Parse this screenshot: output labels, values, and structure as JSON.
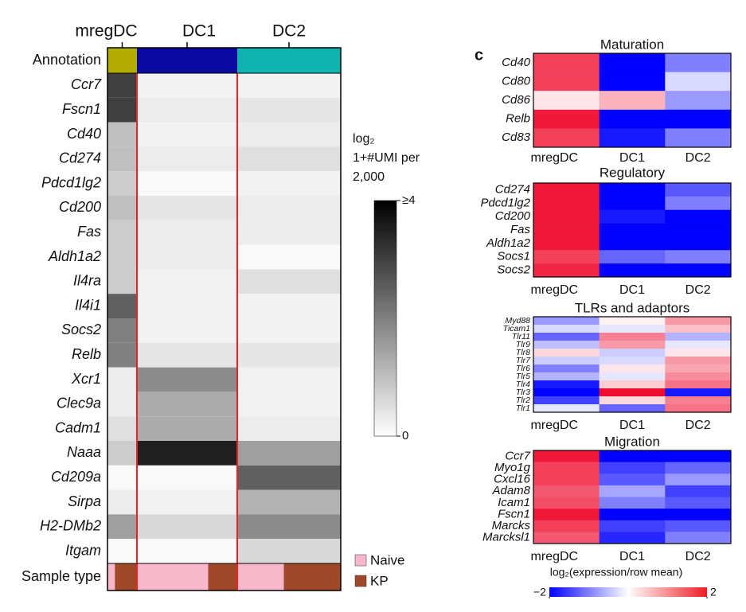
{
  "chart_data": [
    {
      "type": "heatmap",
      "columns": [
        "mregDC",
        "DC1",
        "DC2"
      ],
      "column_colors": [
        "#b3ad00",
        "#0a0aa0",
        "#0fb3b0"
      ],
      "row_header": "Annotation",
      "rows": [
        "Ccr7",
        "Fscn1",
        "Cd40",
        "Cd274",
        "Pdcd1lg2",
        "Cd200",
        "Fas",
        "Aldh1a2",
        "Il4ra",
        "Il4i1",
        "Socs2",
        "Relb",
        "Xcr1",
        "Clec9a",
        "Cadm1",
        "Naaa",
        "Cd209a",
        "Sirpa",
        "H2-DMb2",
        "Itgam"
      ],
      "values": [
        [
          3,
          0.2,
          0.2
        ],
        [
          3,
          0.3,
          0.4
        ],
        [
          1,
          0.2,
          0.3
        ],
        [
          1,
          0.3,
          0.5
        ],
        [
          0.8,
          0.1,
          0.2
        ],
        [
          1,
          0.4,
          0.3
        ],
        [
          0.8,
          0.3,
          0.3
        ],
        [
          0.8,
          0.3,
          0.1
        ],
        [
          0.8,
          0.2,
          0.5
        ],
        [
          2.5,
          0.2,
          0.2
        ],
        [
          2,
          0.2,
          0.2
        ],
        [
          2,
          0.4,
          0.4
        ],
        [
          0.3,
          1.8,
          0.2
        ],
        [
          0.3,
          1.3,
          0.2
        ],
        [
          0.5,
          1.3,
          0.3
        ],
        [
          0.8,
          3.5,
          1.5
        ],
        [
          0.1,
          0.1,
          2.5
        ],
        [
          0.3,
          0.2,
          1.2
        ],
        [
          1.5,
          0.6,
          1.8
        ],
        [
          0.1,
          0.1,
          0.6
        ]
      ],
      "colorbar_label": [
        "log₂",
        "1+#UMI per",
        "2,000"
      ],
      "clim": [
        0,
        4
      ],
      "cticks": [
        {
          "value": 4,
          "label": "≥4"
        },
        0
      ],
      "sample_label": "Sample type",
      "samples": [
        "Naive",
        "KP"
      ],
      "sample_colors": [
        "#f7b8cc",
        "#a0482a"
      ],
      "sample_fractions": [
        [
          0.25,
          0.75
        ],
        [
          0.71,
          0.29
        ],
        [
          0.45,
          0.55
        ]
      ]
    },
    {
      "type": "heatmap",
      "panel_letter": "c",
      "title": "Maturation",
      "columns": [
        "mregDC",
        "DC1",
        "DC2"
      ],
      "rows": [
        "Cd40",
        "Cd80",
        "Cd86",
        "Relb",
        "Cd83"
      ],
      "values": [
        [
          1.5,
          -2,
          -1
        ],
        [
          1.5,
          -2,
          -0.3
        ],
        [
          0.2,
          0.6,
          -0.8
        ],
        [
          1.8,
          -2,
          -2
        ],
        [
          1.5,
          -1.8,
          -1
        ]
      ]
    },
    {
      "type": "heatmap",
      "title": "Regulatory",
      "columns": [
        "mregDC",
        "DC1",
        "DC2"
      ],
      "rows": [
        "Cd274",
        "Pdcd1lg2",
        "Cd200",
        "Fas",
        "Aldh1a2",
        "Socs1",
        "Socs2"
      ],
      "values": [
        [
          1.8,
          -2,
          -1.3
        ],
        [
          1.8,
          -2,
          -1
        ],
        [
          1.8,
          -1.8,
          -2
        ],
        [
          1.8,
          -2,
          -2
        ],
        [
          1.8,
          -2,
          -2
        ],
        [
          1.5,
          -1.2,
          -1
        ],
        [
          1.7,
          -2,
          -2
        ]
      ]
    },
    {
      "type": "heatmap",
      "title": "TLRs and adaptors",
      "columns": [
        "mregDC",
        "DC1",
        "DC2"
      ],
      "rows": [
        "Myd88",
        "Ticam1",
        "Tlr11",
        "Tlr9",
        "Tlr8",
        "Tlr7",
        "Tlr6",
        "Tlr5",
        "Tlr4",
        "Tlr3",
        "Tlr2",
        "Tlr1"
      ],
      "values": [
        [
          -0.8,
          0.1,
          0.8
        ],
        [
          -0.3,
          -0.2,
          0.5
        ],
        [
          -1.2,
          1.0,
          -0.6
        ],
        [
          -0.5,
          0.8,
          -0.2
        ],
        [
          0.3,
          -0.4,
          0.2
        ],
        [
          -0.4,
          -0.3,
          0.8
        ],
        [
          -1.0,
          0.2,
          0.7
        ],
        [
          -0.6,
          -0.2,
          0.9
        ],
        [
          -1.8,
          0.4,
          1.1
        ],
        [
          -2,
          1.9,
          -1.8
        ],
        [
          -1.5,
          0.3,
          1.0
        ],
        [
          -0.2,
          -1.2,
          1.1
        ]
      ]
    },
    {
      "type": "heatmap",
      "title": "Migration",
      "columns": [
        "mregDC",
        "DC1",
        "DC2"
      ],
      "rows": [
        "Ccr7",
        "Myo1g",
        "Cxcl16",
        "Adam8",
        "Icam1",
        "Fscn1",
        "Marcks",
        "Marcksl1"
      ],
      "values": [
        [
          1.8,
          -2,
          -2
        ],
        [
          1.5,
          -1.5,
          -1.2
        ],
        [
          1.5,
          -1.3,
          -0.8
        ],
        [
          1.3,
          -0.7,
          -1.5
        ],
        [
          1.4,
          -1,
          -1.3
        ],
        [
          1.8,
          -2,
          -2
        ],
        [
          1.5,
          -1.5,
          -1.3
        ],
        [
          1.3,
          -1.7,
          -1
        ]
      ],
      "colorbar_label": "log₂(expression/row mean)",
      "clim": [
        -2,
        2
      ],
      "cticks": [
        {
          "value": -2,
          "label": "−2"
        },
        2
      ]
    }
  ]
}
